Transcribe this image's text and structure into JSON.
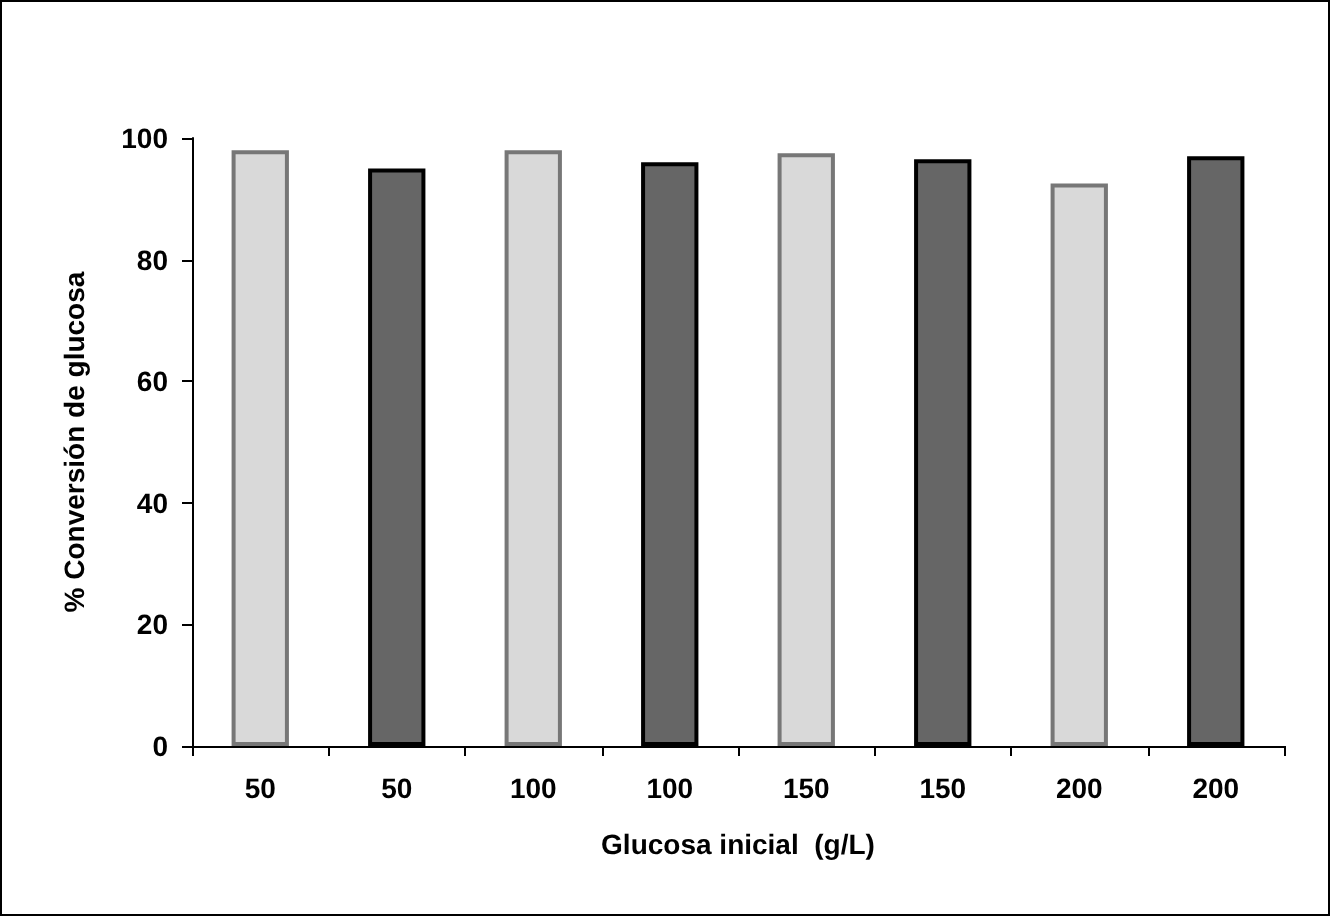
{
  "chart_data": {
    "type": "bar",
    "xlabel": "Glucosa inicial  (g/L)",
    "ylabel": "% Conversión de glucosa",
    "categories": [
      "50",
      "50",
      "100",
      "100",
      "150",
      "150",
      "200",
      "200"
    ],
    "values": [
      98,
      95,
      98,
      96,
      97.5,
      96.5,
      92.5,
      97
    ],
    "colors": [
      "#d9d9d9",
      "#666666",
      "#d9d9d9",
      "#666666",
      "#d9d9d9",
      "#666666",
      "#d9d9d9",
      "#666666"
    ],
    "ylim": [
      0,
      100
    ],
    "yticks": [
      0,
      20,
      40,
      60,
      80,
      100
    ],
    "grid": false
  }
}
